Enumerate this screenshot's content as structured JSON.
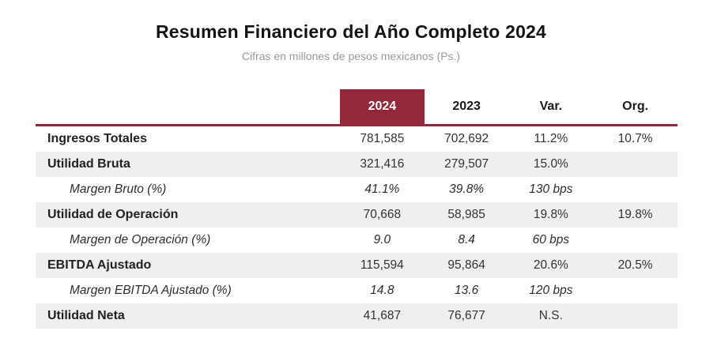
{
  "header": {
    "title": "Resumen Financiero del Año Completo 2024",
    "subtitle": "Cifras en millones de pesos mexicanos (Ps.)"
  },
  "chart_data": {
    "type": "table",
    "title": "Resumen Financiero del Año Completo 2024",
    "subtitle": "Cifras en millones de pesos mexicanos (Ps.)",
    "columns": [
      "2024",
      "2023",
      "Var.",
      "Org."
    ],
    "highlighted_column": "2024",
    "rows": [
      {
        "label": "Ingresos Totales",
        "style": "bold",
        "values": [
          "781,585",
          "702,692",
          "11.2%",
          "10.7%"
        ]
      },
      {
        "label": "Utilidad Bruta",
        "style": "bold",
        "values": [
          "321,416",
          "279,507",
          "15.0%",
          ""
        ]
      },
      {
        "label": "Margen Bruto (%)",
        "style": "italic",
        "values": [
          "41.1%",
          "39.8%",
          "130 bps",
          ""
        ]
      },
      {
        "label": "Utilidad de Operación",
        "style": "bold",
        "values": [
          "70,668",
          "58,985",
          "19.8%",
          "19.8%"
        ]
      },
      {
        "label": "Margen de Operación (%)",
        "style": "italic",
        "values": [
          "9.0",
          "8.4",
          "60 bps",
          ""
        ]
      },
      {
        "label": "EBITDA Ajustado",
        "style": "bold",
        "values": [
          "115,594",
          "95,864",
          "20.6%",
          "20.5%"
        ]
      },
      {
        "label": "Margen EBITDA Ajustado (%)",
        "style": "italic",
        "values": [
          "14.8",
          "13.6",
          "120 bps",
          ""
        ]
      },
      {
        "label": "Utilidad Neta",
        "style": "bold",
        "values": [
          "41,687",
          "76,677",
          "N.S.",
          ""
        ]
      }
    ]
  },
  "colors": {
    "accent_maroon": "#91283C",
    "stripe_gray": "#EFEFEF",
    "subtitle_gray": "#9B9B9B"
  }
}
